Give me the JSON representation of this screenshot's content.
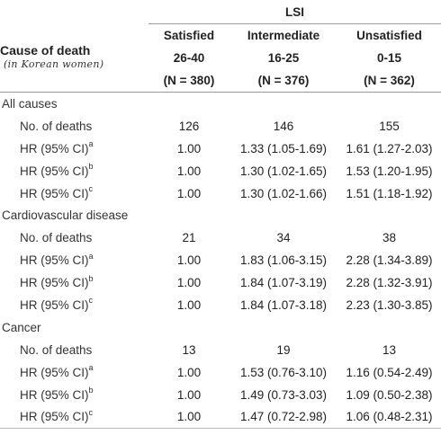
{
  "header": {
    "group_label": "LSI",
    "cause_label": "Cause of death",
    "cause_sub": "(in Korean women)",
    "columns": [
      {
        "name": "Satisfied",
        "range": "26-40",
        "n": "(N = 380)"
      },
      {
        "name": "Intermediate",
        "range": "16-25",
        "n": "(N = 376)"
      },
      {
        "name": "Unsatisfied",
        "range": "0-15",
        "n": "(N = 362)"
      }
    ]
  },
  "sections": [
    {
      "title": "All causes",
      "rows": [
        {
          "label": "No. of deaths",
          "sup": "",
          "values": [
            "126",
            "146",
            "155"
          ]
        },
        {
          "label": "HR (95% CI)",
          "sup": "a",
          "values": [
            "1.00",
            "1.33 (1.05-1.69)",
            "1.61 (1.27-2.03)"
          ]
        },
        {
          "label": "HR (95% CI)",
          "sup": "b",
          "values": [
            "1.00",
            "1.30 (1.02-1.65)",
            "1.53 (1.20-1.95)"
          ]
        },
        {
          "label": "HR (95% CI)",
          "sup": "c",
          "values": [
            "1.00",
            "1.30 (1.02-1.66)",
            "1.51 (1.18-1.92)"
          ]
        }
      ]
    },
    {
      "title": "Cardiovascular disease",
      "rows": [
        {
          "label": "No. of deaths",
          "sup": "",
          "values": [
            "21",
            "34",
            "38"
          ]
        },
        {
          "label": "HR (95% CI)",
          "sup": "a",
          "values": [
            "1.00",
            "1.83 (1.06-3.15)",
            "2.28 (1.34-3.89)"
          ]
        },
        {
          "label": "HR (95% CI)",
          "sup": "b",
          "values": [
            "1.00",
            "1.84 (1.07-3.19)",
            "2.28 (1.32-3.91)"
          ]
        },
        {
          "label": "HR (95% CI)",
          "sup": "c",
          "values": [
            "1.00",
            "1.84 (1.07-3.18)",
            "2.23 (1.30-3.85)"
          ]
        }
      ]
    },
    {
      "title": "Cancer",
      "rows": [
        {
          "label": "No. of deaths",
          "sup": "",
          "values": [
            "13",
            "19",
            "13"
          ]
        },
        {
          "label": "HR (95% CI)",
          "sup": "a",
          "values": [
            "1.00",
            "1.53 (0.76-3.10)",
            "1.16 (0.54-2.49)"
          ]
        },
        {
          "label": "HR (95% CI)",
          "sup": "b",
          "values": [
            "1.00",
            "1.49 (0.73-3.03)",
            "1.09 (0.50-2.38)"
          ]
        },
        {
          "label": "HR (95% CI)",
          "sup": "c",
          "values": [
            "1.00",
            "1.47 (0.72-2.98)",
            "1.06 (0.48-2.31)"
          ]
        }
      ]
    }
  ]
}
